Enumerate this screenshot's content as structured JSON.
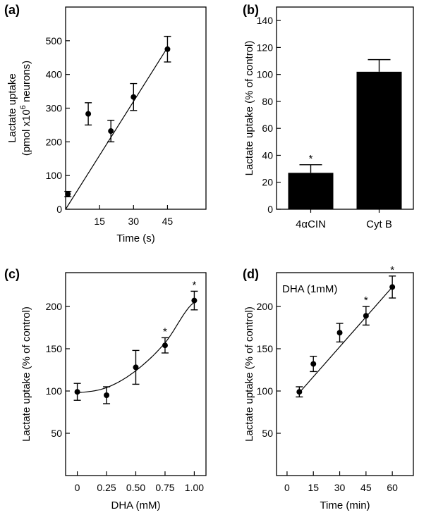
{
  "chart_data": [
    {
      "panel_label": "(a)",
      "type": "scatter",
      "xlabel": "Time (s)",
      "ylabel_line1": "Lactate uptake",
      "ylabel_line2_prefix": "(pmol x10",
      "ylabel_line2_sup": "6",
      "ylabel_line2_suffix": " neurons)",
      "xlim": [
        0,
        62
      ],
      "ylim": [
        0,
        600
      ],
      "xticks": [
        15,
        30,
        45
      ],
      "yticks": [
        0,
        100,
        200,
        300,
        400,
        500
      ],
      "points": [
        {
          "x": 1,
          "y": 45,
          "err": 8
        },
        {
          "x": 10,
          "y": 283,
          "err": 33
        },
        {
          "x": 20,
          "y": 232,
          "err": 32
        },
        {
          "x": 30,
          "y": 333,
          "err": 40
        },
        {
          "x": 45,
          "y": 475,
          "err": 38
        }
      ],
      "fit_line": [
        [
          0,
          0
        ],
        [
          45,
          480
        ]
      ]
    },
    {
      "panel_label": "(b)",
      "type": "bar",
      "ylabel": "Lactate uptake (% of control)",
      "ylim": [
        0,
        150
      ],
      "yticks": [
        0,
        20,
        40,
        60,
        80,
        100,
        120,
        140
      ],
      "categories": [
        "4αCIN",
        "Cyt B"
      ],
      "values": [
        27,
        102
      ],
      "errors": [
        6,
        9
      ],
      "significant": [
        "*",
        ""
      ]
    },
    {
      "panel_label": "(c)",
      "type": "scatter",
      "xlabel": "DHA (mM)",
      "ylabel": "Lactate uptake (% of control)",
      "xlim": [
        -0.1,
        1.1
      ],
      "ylim": [
        0,
        240
      ],
      "xticks": [
        0,
        0.25,
        0.5,
        0.75,
        1.0
      ],
      "xtick_labels": [
        "0",
        "0.25",
        "0.50",
        "0.75",
        "1.00"
      ],
      "yticks": [
        50,
        100,
        150,
        200
      ],
      "points": [
        {
          "x": 0,
          "y": 99,
          "err": 10,
          "sig": ""
        },
        {
          "x": 0.25,
          "y": 95,
          "err": 10,
          "sig": ""
        },
        {
          "x": 0.5,
          "y": 128,
          "err": 20,
          "sig": ""
        },
        {
          "x": 0.75,
          "y": 154,
          "err": 9,
          "sig": "*"
        },
        {
          "x": 1.0,
          "y": 207,
          "err": 11,
          "sig": "*"
        }
      ],
      "fit_curve": [
        [
          0,
          98
        ],
        [
          0.25,
          104
        ],
        [
          0.5,
          124
        ],
        [
          0.75,
          157
        ],
        [
          1.0,
          205
        ]
      ]
    },
    {
      "panel_label": "(d)",
      "type": "scatter",
      "annotation": "DHA (1mM)",
      "xlabel": "Time (min)",
      "ylabel": "Lactate uptake (% of control)",
      "xlim": [
        -6,
        72
      ],
      "ylim": [
        0,
        240
      ],
      "xticks": [
        0,
        15,
        30,
        45,
        60
      ],
      "yticks": [
        50,
        100,
        150,
        200
      ],
      "points": [
        {
          "x": 7,
          "y": 99,
          "err": 6,
          "sig": ""
        },
        {
          "x": 15,
          "y": 132,
          "err": 9,
          "sig": ""
        },
        {
          "x": 30,
          "y": 169,
          "err": 11,
          "sig": ""
        },
        {
          "x": 45,
          "y": 189,
          "err": 11,
          "sig": "*"
        },
        {
          "x": 60,
          "y": 223,
          "err": 13,
          "sig": "*"
        }
      ],
      "fit_line": [
        [
          7,
          98
        ],
        [
          60,
          223
        ]
      ]
    }
  ]
}
